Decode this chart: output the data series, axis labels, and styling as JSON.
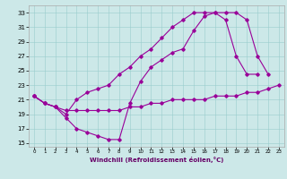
{
  "xlabel": "Windchill (Refroidissement éolien,°C)",
  "xlim": [
    -0.5,
    23.5
  ],
  "ylim": [
    14.5,
    34.0
  ],
  "xticks": [
    0,
    1,
    2,
    3,
    4,
    5,
    6,
    7,
    8,
    9,
    10,
    11,
    12,
    13,
    14,
    15,
    16,
    17,
    18,
    19,
    20,
    21,
    22,
    23
  ],
  "yticks": [
    15,
    17,
    19,
    21,
    23,
    25,
    27,
    29,
    31,
    33
  ],
  "line_color": "#990099",
  "background_color": "#cce8e8",
  "grid_color": "#99cccc",
  "line1_x": [
    0,
    1,
    2,
    3,
    4,
    5,
    6,
    7,
    8,
    9,
    10,
    11,
    12,
    13,
    14,
    15,
    16,
    17,
    18,
    19,
    20,
    21,
    22,
    23
  ],
  "line1_y": [
    21.5,
    20.5,
    20.0,
    19.5,
    19.5,
    19.5,
    19.5,
    19.5,
    19.5,
    20.0,
    20.0,
    20.5,
    20.5,
    21.0,
    21.0,
    21.0,
    21.0,
    21.5,
    21.5,
    21.5,
    22.0,
    22.0,
    22.5,
    23.0
  ],
  "line2_x": [
    0,
    1,
    2,
    3,
    4,
    5,
    6,
    7,
    8,
    9,
    10,
    11,
    12,
    13,
    14,
    15,
    16,
    17,
    18,
    19,
    20,
    21,
    22
  ],
  "line2_y": [
    21.5,
    20.5,
    20.0,
    18.5,
    17.0,
    16.5,
    16.0,
    15.5,
    15.5,
    20.5,
    23.5,
    25.5,
    26.5,
    27.5,
    28.0,
    30.5,
    32.5,
    33.0,
    33.0,
    33.0,
    32.0,
    27.0,
    24.5
  ],
  "line3_x": [
    0,
    1,
    2,
    3,
    4,
    5,
    6,
    7,
    8,
    9,
    10,
    11,
    12,
    13,
    14,
    15,
    16,
    17,
    18,
    19,
    20,
    21
  ],
  "line3_y": [
    21.5,
    20.5,
    20.0,
    19.0,
    21.0,
    22.0,
    22.5,
    23.0,
    24.5,
    25.5,
    27.0,
    28.0,
    29.5,
    31.0,
    32.0,
    33.0,
    33.0,
    33.0,
    32.0,
    27.0,
    24.5,
    24.5
  ]
}
